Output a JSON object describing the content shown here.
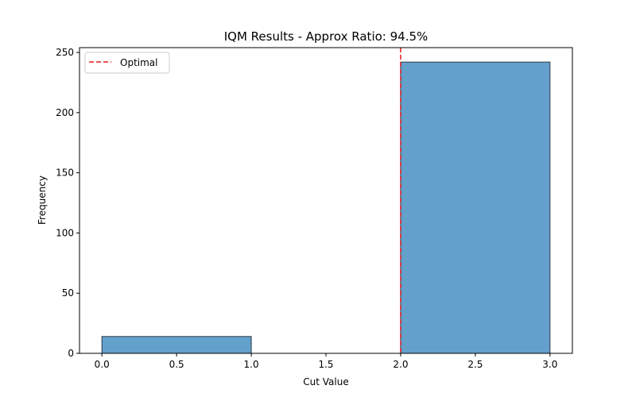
{
  "chart_data": {
    "type": "bar",
    "title": "IQM Results - Approx Ratio: 94.5%",
    "xlabel": "Cut Value",
    "ylabel": "Frequency",
    "bins": [
      {
        "start": 0.0,
        "end": 1.0,
        "value": 14
      },
      {
        "start": 2.0,
        "end": 3.0,
        "value": 242
      }
    ],
    "xlim": [
      -0.15,
      3.15
    ],
    "ylim": [
      0,
      254
    ],
    "xticks": [
      0.0,
      0.5,
      1.0,
      1.5,
      2.0,
      2.5,
      3.0
    ],
    "xtick_labels": [
      "0.0",
      "0.5",
      "1.0",
      "1.5",
      "2.0",
      "2.5",
      "3.0"
    ],
    "yticks": [
      0,
      50,
      100,
      150,
      200,
      250
    ],
    "ytick_labels": [
      "0",
      "50",
      "100",
      "150",
      "200",
      "250"
    ],
    "optimal": {
      "x": 2.0,
      "label": "Optimal"
    },
    "legend_position": "upper-left",
    "grid": false,
    "colors": {
      "bar": "#64a0cc",
      "bar_edge": "#2b3a45",
      "optimal_line": "#e41a1c"
    }
  }
}
